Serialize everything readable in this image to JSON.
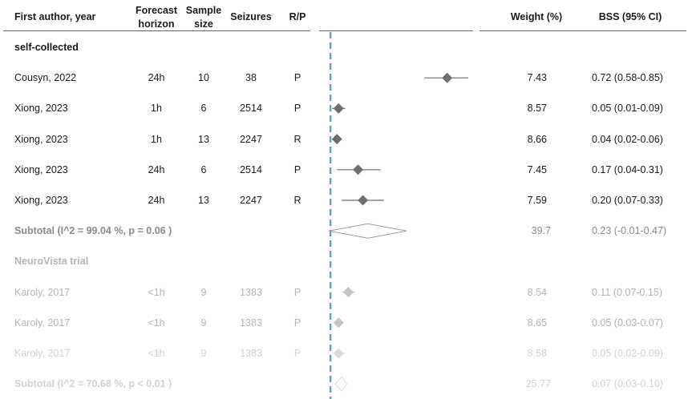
{
  "headers": {
    "author": "First author, year",
    "horizon_line1": "Forecast",
    "horizon_line2": "horizon",
    "sample_line1": "Sample",
    "sample_line2": "size",
    "seizures": "Seizures",
    "rp": "R/P",
    "weight": "Weight (%)",
    "bss": "BSS (95% CI)"
  },
  "colors": {
    "text_dark": "#1a1a1a",
    "text_mid": "#8a8a8a",
    "text_light": "#b4b4b4",
    "text_faint": "#d2d2d2",
    "marker_dark": "#6e6e6e",
    "marker_mid": "#9a9a9a",
    "marker_light": "#c4c4c4",
    "marker_faint": "#dadada",
    "ref_line": "#5aa6b2"
  },
  "chart_data": {
    "type": "forest",
    "reference_x": 0.0,
    "xlim": [
      -0.07,
      0.88
    ],
    "rows": [
      {
        "kind": "group",
        "label": "self-collected",
        "shade": "dark"
      },
      {
        "kind": "study",
        "label": "Cousyn, 2022",
        "horizon": "24h",
        "sample": "10",
        "seizures": "38",
        "rp": "P",
        "weight": "7.43",
        "ci_text": "0.72 (0.58-0.85)",
        "est": 0.72,
        "lo": 0.58,
        "hi": 0.85,
        "shade": "dark"
      },
      {
        "kind": "study",
        "label": "Xiong, 2023",
        "horizon": "1h",
        "sample": "6",
        "seizures": "2514",
        "rp": "P",
        "weight": "8.57",
        "ci_text": "0.05 (0.01-0.09)",
        "est": 0.05,
        "lo": 0.01,
        "hi": 0.09,
        "shade": "dark"
      },
      {
        "kind": "study",
        "label": "Xiong, 2023",
        "horizon": "1h",
        "sample": "13",
        "seizures": "2247",
        "rp": "R",
        "weight": "8.66",
        "ci_text": "0.04 (0.02-0.06)",
        "est": 0.04,
        "lo": 0.02,
        "hi": 0.06,
        "shade": "dark"
      },
      {
        "kind": "study",
        "label": "Xiong, 2023",
        "horizon": "24h",
        "sample": "6",
        "seizures": "2514",
        "rp": "P",
        "weight": "7.45",
        "ci_text": "0.17 (0.04-0.31)",
        "est": 0.17,
        "lo": 0.04,
        "hi": 0.31,
        "shade": "dark"
      },
      {
        "kind": "study",
        "label": "Xiong, 2023",
        "horizon": "24h",
        "sample": "13",
        "seizures": "2247",
        "rp": "R",
        "weight": "7.59",
        "ci_text": "0.20 (0.07-0.33)",
        "est": 0.2,
        "lo": 0.07,
        "hi": 0.33,
        "shade": "dark"
      },
      {
        "kind": "subtotal",
        "label": "Subtotal  (I^2 = 99.04 %,  p = 0.06 )",
        "weight": "39.7",
        "ci_text": "0.23 (-0.01-0.47)",
        "est": 0.23,
        "lo": -0.01,
        "hi": 0.47,
        "shade": "mid"
      },
      {
        "kind": "group",
        "label": "NeuroVista trial",
        "shade": "light"
      },
      {
        "kind": "study",
        "label": "Karoly, 2017",
        "horizon": "<1h",
        "sample": "9",
        "seizures": "1383",
        "rp": "P",
        "weight": "8.54",
        "ci_text": "0.11 (0.07-0.15)",
        "est": 0.11,
        "lo": 0.07,
        "hi": 0.15,
        "shade": "light"
      },
      {
        "kind": "study",
        "label": "Karoly, 2017",
        "horizon": "<1h",
        "sample": "9",
        "seizures": "1383",
        "rp": "P",
        "weight": "8.65",
        "ci_text": "0.05 (0.03-0.07)",
        "est": 0.05,
        "lo": 0.03,
        "hi": 0.07,
        "shade": "light"
      },
      {
        "kind": "study",
        "label": "Karoly, 2017",
        "horizon": "<1h",
        "sample": "9",
        "seizures": "1383",
        "rp": "P",
        "weight": "8.58",
        "ci_text": "0.05 (0.02-0.09)",
        "est": 0.05,
        "lo": 0.02,
        "hi": 0.09,
        "shade": "faint"
      },
      {
        "kind": "subtotal",
        "label": "Subtotal  (I^2 = 70.68 %,  p < 0.01 )",
        "weight": "25.77",
        "ci_text": "0.07 (0.03-0.10)",
        "est": 0.07,
        "lo": 0.03,
        "hi": 0.1,
        "shade": "faint"
      }
    ]
  }
}
